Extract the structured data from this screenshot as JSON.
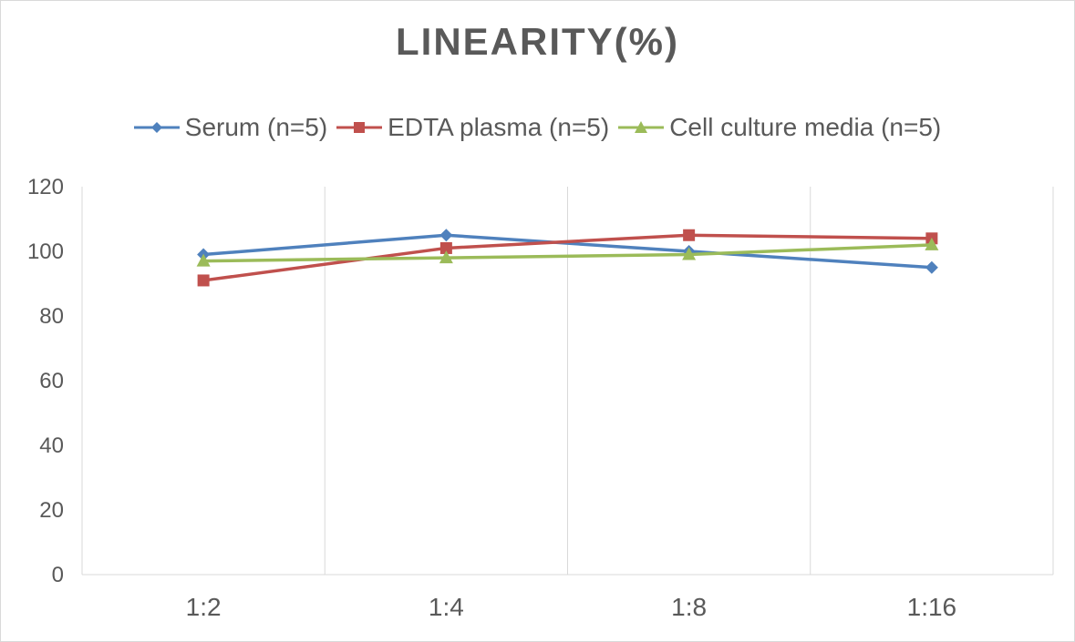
{
  "chart_data": {
    "type": "line",
    "title": "LINEARITY(%)",
    "categories": [
      "1:2",
      "1:4",
      "1:8",
      "1:16"
    ],
    "ylim": [
      0,
      120
    ],
    "yticks": [
      0,
      20,
      40,
      60,
      80,
      100,
      120
    ],
    "grid": "vertical",
    "legend_position": "top",
    "series": [
      {
        "name": "Serum (n=5)",
        "color": "#4f81bd",
        "marker": "diamond",
        "values": [
          99,
          105,
          100,
          95
        ]
      },
      {
        "name": "EDTA plasma (n=5)",
        "color": "#c0504d",
        "marker": "square",
        "values": [
          91,
          101,
          105,
          104
        ]
      },
      {
        "name": "Cell culture media (n=5)",
        "color": "#9bbb59",
        "marker": "triangle",
        "values": [
          97,
          98,
          99,
          102
        ]
      }
    ]
  }
}
